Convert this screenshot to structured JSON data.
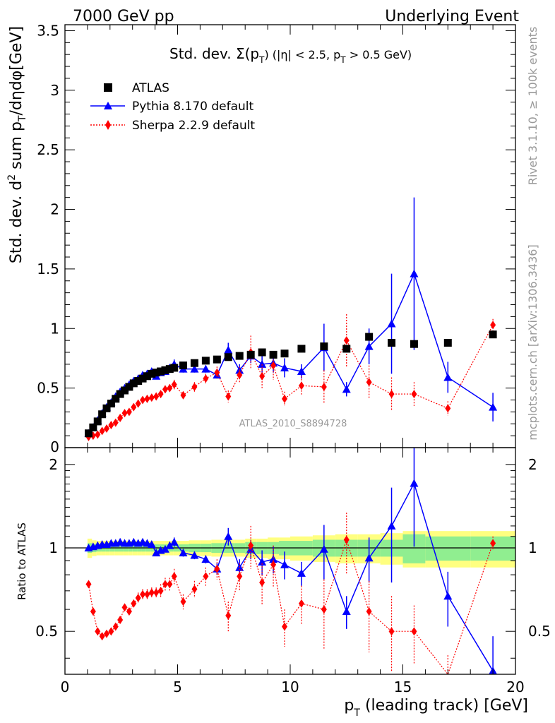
{
  "header": {
    "left": "7000 GeV pp",
    "right": "Underlying Event"
  },
  "side_labels": {
    "top": "Rivet 3.1.10, ≥ 100k events",
    "bottom": "mcplots.cern.ch [arXiv:1306.3436]"
  },
  "watermark": "ATLAS_2010_S8894728",
  "colors": {
    "atlas": "#000000",
    "pythia": "#0000ff",
    "sherpa": "#ff0000",
    "band_inner": "#90ee90",
    "band_outer": "#ffff80",
    "watermark": "#999999"
  },
  "chart_data": [
    {
      "type": "scatter",
      "panel": "main",
      "title": "Std. dev. Σ(p_T) (|η| < 2.5, p_T > 0.5 GeV)",
      "title_parts": {
        "pre": "Std. dev. ",
        "sigma": "Σ(p",
        "sub1": "T",
        "mid": ") (|η| < 2.5, p",
        "sub2": "T",
        "post": " > 0.5 GeV)"
      },
      "ylabel": "Std. dev. d² sum p_T/dηdφ[GeV]",
      "ylabel_parts": {
        "a": "Std. dev. d",
        "sup": "2",
        "b": " sum p",
        "sub": "T",
        "c": "/dηdφ[GeV]"
      },
      "xlim": [
        0,
        20
      ],
      "ylim": [
        0,
        3.55
      ],
      "yticks": [
        0,
        0.5,
        1,
        1.5,
        2,
        2.5,
        3,
        3.5
      ],
      "ytick_labels": [
        "0",
        "0.5",
        "1",
        "1.5",
        "2",
        "2.5",
        "3",
        "3.5"
      ],
      "legend_position": "top-left",
      "series": [
        {
          "name": "ATLAS",
          "marker": "square",
          "x": [
            1.05,
            1.25,
            1.45,
            1.65,
            1.85,
            2.05,
            2.25,
            2.45,
            2.65,
            2.85,
            3.05,
            3.25,
            3.45,
            3.65,
            3.85,
            4.05,
            4.25,
            4.45,
            4.65,
            4.85,
            5.25,
            5.75,
            6.25,
            6.75,
            7.25,
            7.75,
            8.25,
            8.75,
            9.25,
            9.75,
            10.5,
            11.5,
            12.5,
            13.5,
            14.5,
            15.5,
            17.0,
            19.0
          ],
          "y": [
            0.12,
            0.17,
            0.22,
            0.28,
            0.33,
            0.37,
            0.41,
            0.45,
            0.48,
            0.51,
            0.54,
            0.56,
            0.58,
            0.6,
            0.62,
            0.63,
            0.64,
            0.65,
            0.66,
            0.67,
            0.69,
            0.71,
            0.73,
            0.74,
            0.76,
            0.77,
            0.78,
            0.8,
            0.78,
            0.79,
            0.83,
            0.85,
            0.83,
            0.93,
            0.88,
            0.87,
            0.88,
            0.95
          ]
        },
        {
          "name": "Pythia 8.170 default",
          "marker": "triangle",
          "x": [
            1.05,
            1.25,
            1.45,
            1.65,
            1.85,
            2.05,
            2.25,
            2.45,
            2.65,
            2.85,
            3.05,
            3.25,
            3.45,
            3.65,
            3.85,
            4.05,
            4.25,
            4.45,
            4.65,
            4.85,
            5.25,
            5.75,
            6.25,
            6.75,
            7.25,
            7.75,
            8.25,
            8.75,
            9.25,
            9.75,
            10.5,
            11.5,
            12.5,
            13.5,
            14.5,
            15.5,
            17.0,
            19.0
          ],
          "y": [
            0.12,
            0.17,
            0.23,
            0.29,
            0.34,
            0.38,
            0.43,
            0.47,
            0.5,
            0.53,
            0.56,
            0.58,
            0.61,
            0.62,
            0.64,
            0.6,
            0.63,
            0.64,
            0.67,
            0.7,
            0.66,
            0.66,
            0.66,
            0.61,
            0.82,
            0.65,
            0.77,
            0.7,
            0.71,
            0.67,
            0.64,
            0.84,
            0.49,
            0.85,
            1.04,
            1.46,
            0.59,
            0.34
          ],
          "err": [
            0.005,
            0.005,
            0.005,
            0.005,
            0.005,
            0.006,
            0.007,
            0.008,
            0.009,
            0.01,
            0.012,
            0.014,
            0.015,
            0.016,
            0.018,
            0.02,
            0.02,
            0.02,
            0.03,
            0.04,
            0.03,
            0.03,
            0.03,
            0.03,
            0.06,
            0.05,
            0.06,
            0.07,
            0.08,
            0.08,
            0.06,
            0.2,
            0.06,
            0.15,
            0.42,
            0.64,
            0.13,
            0.12
          ]
        },
        {
          "name": "Sherpa 2.2.9 default",
          "marker": "diamond",
          "x": [
            1.05,
            1.25,
            1.45,
            1.65,
            1.85,
            2.05,
            2.25,
            2.45,
            2.65,
            2.85,
            3.05,
            3.25,
            3.45,
            3.65,
            3.85,
            4.05,
            4.25,
            4.45,
            4.65,
            4.85,
            5.25,
            5.75,
            6.25,
            6.75,
            7.25,
            7.75,
            8.25,
            8.75,
            9.25,
            9.75,
            10.5,
            11.5,
            12.5,
            13.5,
            14.5,
            15.5,
            17.0,
            19.0
          ],
          "y": [
            0.09,
            0.1,
            0.11,
            0.14,
            0.16,
            0.19,
            0.21,
            0.25,
            0.29,
            0.3,
            0.34,
            0.37,
            0.4,
            0.41,
            0.42,
            0.43,
            0.45,
            0.49,
            0.5,
            0.53,
            0.44,
            0.51,
            0.58,
            0.63,
            0.43,
            0.61,
            0.8,
            0.6,
            0.69,
            0.41,
            0.52,
            0.51,
            0.9,
            0.55,
            0.45,
            0.45,
            0.33,
            1.03
          ],
          "err": [
            0.005,
            0.005,
            0.005,
            0.006,
            0.006,
            0.007,
            0.008,
            0.01,
            0.012,
            0.013,
            0.015,
            0.017,
            0.02,
            0.02,
            0.02,
            0.02,
            0.03,
            0.03,
            0.03,
            0.04,
            0.03,
            0.04,
            0.04,
            0.05,
            0.05,
            0.07,
            0.14,
            0.1,
            0.12,
            0.06,
            0.08,
            0.14,
            0.22,
            0.14,
            0.14,
            0.1,
            0.06,
            0.05
          ]
        }
      ]
    },
    {
      "type": "line",
      "panel": "ratio",
      "xlabel": "p_T (leading track) [GeV]",
      "xlabel_parts": {
        "a": "p",
        "sub": "T",
        "b": " (leading track) [GeV]"
      },
      "ylabel": "Ratio to ATLAS",
      "xlim": [
        0,
        20
      ],
      "ylim": [
        0.35,
        2.3
      ],
      "yticks": [
        0.5,
        1,
        2
      ],
      "ytick_labels": [
        "0.5",
        "1",
        "2"
      ],
      "xticks": [
        0,
        5,
        10,
        15,
        20
      ],
      "xtick_labels": [
        "0",
        "5",
        "10",
        "15",
        "20"
      ],
      "band_x_edges": [
        1.0,
        1.2,
        1.4,
        1.6,
        1.8,
        2.0,
        2.2,
        2.4,
        2.6,
        2.8,
        3.0,
        3.2,
        3.4,
        3.6,
        3.8,
        4.0,
        4.2,
        4.4,
        4.6,
        4.8,
        5.0,
        5.5,
        6.0,
        6.5,
        7.0,
        7.5,
        8.0,
        8.5,
        9.0,
        9.5,
        10.0,
        11.0,
        12.0,
        13.0,
        14.0,
        15.0,
        16.0,
        18.0,
        20.0
      ],
      "band_inner": [
        0.04,
        0.035,
        0.03,
        0.03,
        0.03,
        0.03,
        0.03,
        0.03,
        0.03,
        0.03,
        0.03,
        0.03,
        0.03,
        0.03,
        0.03,
        0.03,
        0.03,
        0.03,
        0.03,
        0.03,
        0.03,
        0.035,
        0.035,
        0.04,
        0.04,
        0.04,
        0.05,
        0.05,
        0.05,
        0.06,
        0.06,
        0.07,
        0.07,
        0.07,
        0.07,
        0.12,
        0.1,
        0.1
      ],
      "band_outer": [
        0.08,
        0.065,
        0.06,
        0.06,
        0.06,
        0.06,
        0.06,
        0.06,
        0.06,
        0.06,
        0.06,
        0.06,
        0.06,
        0.06,
        0.06,
        0.06,
        0.06,
        0.06,
        0.06,
        0.06,
        0.06,
        0.065,
        0.065,
        0.07,
        0.07,
        0.07,
        0.08,
        0.08,
        0.09,
        0.09,
        0.1,
        0.11,
        0.12,
        0.12,
        0.13,
        0.15,
        0.15,
        0.15
      ],
      "series": [
        {
          "name": "Pythia 8.170 default",
          "x": [
            1.05,
            1.25,
            1.45,
            1.65,
            1.85,
            2.05,
            2.25,
            2.45,
            2.65,
            2.85,
            3.05,
            3.25,
            3.45,
            3.65,
            3.85,
            4.05,
            4.25,
            4.45,
            4.65,
            4.85,
            5.25,
            5.75,
            6.25,
            6.75,
            7.25,
            7.75,
            8.25,
            8.75,
            9.25,
            9.75,
            10.5,
            11.5,
            12.5,
            13.5,
            14.5,
            15.5,
            17.0,
            19.0
          ],
          "y": [
            1.0,
            1.01,
            1.02,
            1.03,
            1.03,
            1.04,
            1.04,
            1.05,
            1.04,
            1.04,
            1.05,
            1.04,
            1.05,
            1.04,
            1.03,
            0.96,
            0.98,
            0.99,
            1.02,
            1.05,
            0.96,
            0.94,
            0.91,
            0.84,
            1.1,
            0.85,
            0.99,
            0.89,
            0.91,
            0.87,
            0.81,
            0.99,
            0.59,
            0.92,
            1.2,
            1.71,
            0.67,
            0.36
          ],
          "err": [
            0.01,
            0.01,
            0.01,
            0.01,
            0.01,
            0.01,
            0.01,
            0.01,
            0.01,
            0.01,
            0.01,
            0.01,
            0.01,
            0.01,
            0.02,
            0.02,
            0.02,
            0.02,
            0.03,
            0.04,
            0.03,
            0.03,
            0.03,
            0.04,
            0.08,
            0.06,
            0.08,
            0.09,
            0.1,
            0.1,
            0.08,
            0.22,
            0.08,
            0.17,
            0.45,
            0.7,
            0.15,
            0.12
          ]
        },
        {
          "name": "Sherpa 2.2.9 default",
          "x": [
            1.05,
            1.25,
            1.45,
            1.65,
            1.85,
            2.05,
            2.25,
            2.45,
            2.65,
            2.85,
            3.05,
            3.25,
            3.45,
            3.65,
            3.85,
            4.05,
            4.25,
            4.45,
            4.65,
            4.85,
            5.25,
            5.75,
            6.25,
            6.75,
            7.25,
            7.75,
            8.25,
            8.75,
            9.25,
            9.75,
            10.5,
            11.5,
            12.5,
            13.5,
            14.5,
            15.5,
            17.0,
            19.0
          ],
          "y": [
            0.74,
            0.59,
            0.5,
            0.48,
            0.49,
            0.5,
            0.52,
            0.55,
            0.61,
            0.59,
            0.63,
            0.66,
            0.68,
            0.68,
            0.69,
            0.69,
            0.7,
            0.74,
            0.74,
            0.79,
            0.64,
            0.71,
            0.79,
            0.84,
            0.57,
            0.79,
            1.02,
            0.75,
            0.87,
            0.52,
            0.63,
            0.6,
            1.07,
            0.59,
            0.5,
            0.5,
            0.33,
            1.04
          ],
          "err": [
            0.01,
            0.01,
            0.01,
            0.01,
            0.01,
            0.01,
            0.01,
            0.02,
            0.02,
            0.02,
            0.02,
            0.03,
            0.03,
            0.03,
            0.03,
            0.03,
            0.04,
            0.04,
            0.04,
            0.05,
            0.04,
            0.05,
            0.06,
            0.07,
            0.07,
            0.09,
            0.18,
            0.13,
            0.15,
            0.08,
            0.1,
            0.17,
            0.27,
            0.17,
            0.17,
            0.12,
            0.08,
            0.06
          ]
        }
      ]
    }
  ]
}
